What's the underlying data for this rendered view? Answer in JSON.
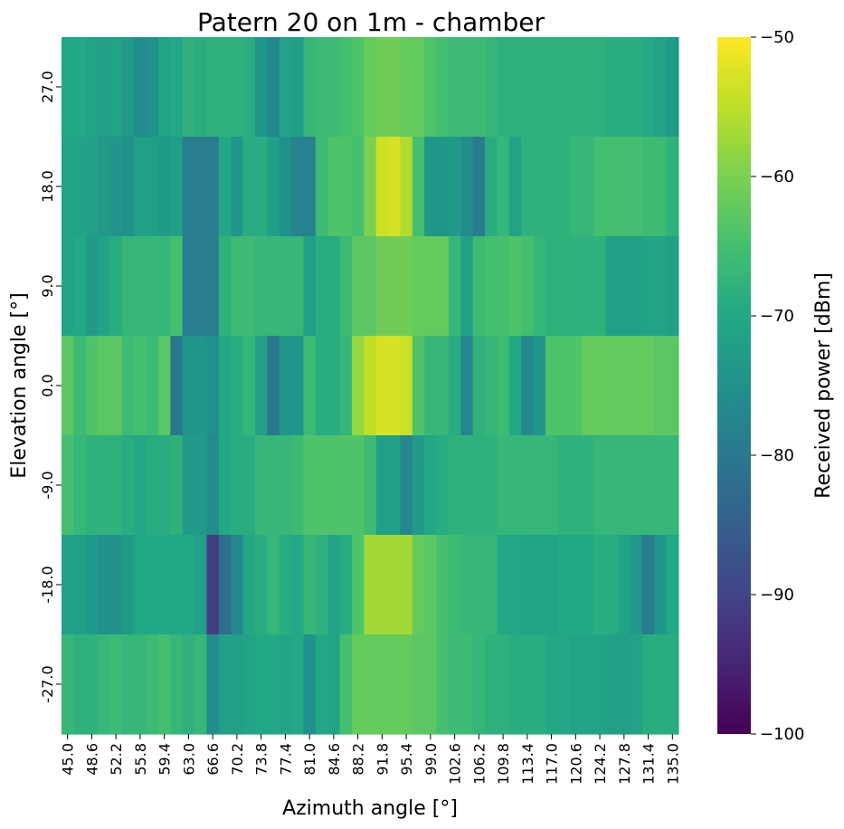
{
  "chart_data": {
    "type": "heatmap",
    "title": "Patern 20 on 1m - chamber",
    "xlabel": "Azimuth angle [°]",
    "ylabel": "Elevation angle [°]",
    "colorbar_label": "Received power [dBm]",
    "colorbar_ticks": [
      "−50",
      "−60",
      "−70",
      "−80",
      "−90",
      "−100"
    ],
    "colormap": "viridis",
    "vmin": -100,
    "vmax": -50,
    "x_tick_labels": [
      "45.0",
      "48.6",
      "52.2",
      "55.8",
      "59.4",
      "63.0",
      "66.6",
      "70.2",
      "73.8",
      "77.4",
      "81.0",
      "84.6",
      "88.2",
      "91.8",
      "95.4",
      "99.0",
      "102.6",
      "106.2",
      "109.8",
      "113.4",
      "117.0",
      "120.6",
      "124.2",
      "127.8",
      "131.4",
      "135.0"
    ],
    "y_tick_labels": [
      "27.0",
      "18.0",
      "9.0",
      "0.0",
      "-9.0",
      "-18.0",
      "-27.0"
    ],
    "x_values": [
      45.0,
      46.8,
      48.6,
      50.4,
      52.2,
      54.0,
      55.8,
      57.6,
      59.4,
      61.2,
      63.0,
      64.8,
      66.6,
      68.4,
      70.2,
      72.0,
      73.8,
      75.6,
      77.4,
      79.2,
      81.0,
      82.8,
      84.6,
      86.4,
      88.2,
      90.0,
      91.8,
      93.6,
      95.4,
      97.2,
      99.0,
      100.8,
      102.6,
      104.4,
      106.2,
      108.0,
      109.8,
      111.6,
      113.4,
      115.2,
      117.0,
      118.8,
      120.6,
      122.4,
      124.2,
      126.0,
      127.8,
      129.6,
      131.4,
      133.2,
      135.0
    ],
    "y_values": [
      27.0,
      18.0,
      9.0,
      0.0,
      -9.0,
      -18.0,
      -27.0
    ],
    "values": [
      [
        -70,
        -70,
        -71,
        -72,
        -71,
        -73,
        -76,
        -75,
        -71,
        -70,
        -68,
        -69,
        -68,
        -68,
        -68,
        -69,
        -74,
        -77,
        -71,
        -72,
        -67,
        -66,
        -66,
        -65,
        -64,
        -62,
        -61,
        -61,
        -62,
        -62,
        -64,
        -65,
        -66,
        -66,
        -66,
        -67,
        -68,
        -68,
        -68,
        -68,
        -68,
        -68,
        -68,
        -68,
        -68,
        -69,
        -69,
        -69,
        -70,
        -71,
        -73
      ],
      [
        -71,
        -71,
        -72,
        -73,
        -74,
        -75,
        -72,
        -72,
        -73,
        -72,
        -79,
        -79,
        -79,
        -70,
        -74,
        -69,
        -69,
        -72,
        -75,
        -78,
        -78,
        -66,
        -64,
        -64,
        -65,
        -60,
        -54,
        -53,
        -56,
        -65,
        -74,
        -74,
        -73,
        -76,
        -79,
        -69,
        -67,
        -71,
        -68,
        -68,
        -68,
        -68,
        -67,
        -67,
        -65,
        -65,
        -65,
        -65,
        -66,
        -66,
        -68
      ],
      [
        -71,
        -70,
        -73,
        -71,
        -69,
        -67,
        -67,
        -67,
        -67,
        -65,
        -79,
        -79,
        -79,
        -68,
        -66,
        -66,
        -67,
        -67,
        -67,
        -67,
        -72,
        -69,
        -69,
        -66,
        -63,
        -63,
        -61,
        -61,
        -61,
        -62,
        -62,
        -62,
        -67,
        -72,
        -66,
        -65,
        -65,
        -64,
        -65,
        -67,
        -68,
        -68,
        -68,
        -68,
        -68,
        -72,
        -72,
        -72,
        -71,
        -71,
        -72
      ],
      [
        -63,
        -66,
        -64,
        -63,
        -63,
        -66,
        -65,
        -66,
        -63,
        -80,
        -74,
        -74,
        -75,
        -70,
        -69,
        -67,
        -72,
        -80,
        -74,
        -74,
        -66,
        -69,
        -69,
        -67,
        -58,
        -55,
        -53,
        -53,
        -54,
        -64,
        -67,
        -67,
        -69,
        -77,
        -68,
        -67,
        -66,
        -70,
        -77,
        -74,
        -64,
        -64,
        -64,
        -62,
        -62,
        -62,
        -62,
        -62,
        -62,
        -63,
        -63
      ],
      [
        -65,
        -67,
        -68,
        -68,
        -68,
        -69,
        -70,
        -69,
        -69,
        -68,
        -73,
        -73,
        -76,
        -70,
        -69,
        -69,
        -67,
        -67,
        -67,
        -66,
        -64,
        -64,
        -64,
        -64,
        -64,
        -66,
        -72,
        -72,
        -77,
        -73,
        -70,
        -69,
        -68,
        -68,
        -68,
        -68,
        -67,
        -67,
        -67,
        -67,
        -67,
        -68,
        -68,
        -68,
        -67,
        -67,
        -67,
        -67,
        -67,
        -67,
        -67
      ],
      [
        -72,
        -72,
        -73,
        -75,
        -75,
        -73,
        -70,
        -70,
        -70,
        -70,
        -70,
        -72,
        -91,
        -82,
        -77,
        -70,
        -69,
        -67,
        -69,
        -70,
        -67,
        -68,
        -71,
        -69,
        -64,
        -57,
        -57,
        -57,
        -57,
        -62,
        -63,
        -65,
        -66,
        -67,
        -67,
        -67,
        -70,
        -70,
        -71,
        -71,
        -71,
        -70,
        -70,
        -70,
        -69,
        -69,
        -71,
        -73,
        -79,
        -74,
        -70
      ],
      [
        -67,
        -68,
        -68,
        -67,
        -66,
        -67,
        -67,
        -66,
        -65,
        -67,
        -68,
        -67,
        -76,
        -72,
        -72,
        -71,
        -70,
        -70,
        -71,
        -70,
        -75,
        -70,
        -71,
        -65,
        -62,
        -62,
        -62,
        -62,
        -62,
        -63,
        -63,
        -65,
        -66,
        -66,
        -67,
        -68,
        -68,
        -69,
        -69,
        -69,
        -70,
        -70,
        -71,
        -71,
        -71,
        -72,
        -72,
        -71,
        -69,
        -69,
        -69
      ]
    ]
  }
}
